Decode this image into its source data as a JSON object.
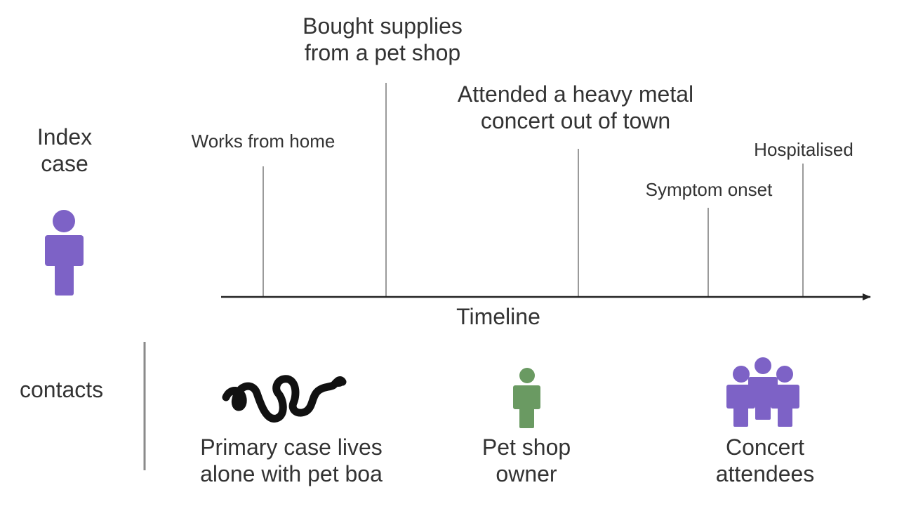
{
  "index_case": {
    "label": "Index\ncase",
    "figure_color": "#7d62c6"
  },
  "timeline": {
    "axis_label": "Timeline",
    "axis_color": "#222222",
    "tick_color": "#9a9a9a",
    "events": [
      {
        "label": "Works from home"
      },
      {
        "label": "Bought supplies\nfrom a pet shop"
      },
      {
        "label": "Attended a heavy metal\nconcert out of town"
      },
      {
        "label": "Symptom onset"
      },
      {
        "label": "Hospitalised"
      }
    ]
  },
  "contacts": {
    "heading": "contacts",
    "divider_color": "#8a8a8a",
    "items": [
      {
        "label": "Primary case lives\nalone with pet boa",
        "icon": "snake-icon",
        "color": "#111111"
      },
      {
        "label": "Pet shop\nowner",
        "icon": "person-icon",
        "color": "#6a9a62"
      },
      {
        "label": "Concert\nattendees",
        "icon": "group-icon",
        "color": "#7d62c6"
      }
    ]
  }
}
